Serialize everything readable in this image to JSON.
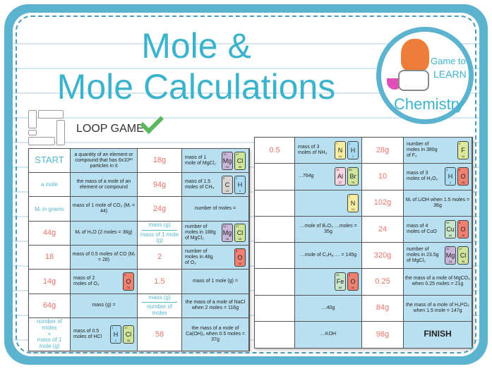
{
  "title": {
    "line1": "Mole &",
    "line2": "Mole Calculations"
  },
  "logo": {
    "line1": "Game to",
    "line2": "LEARN",
    "line3": "Chemistry"
  },
  "badge": {
    "label": "LOOP GAME"
  },
  "colors": {
    "accent": "#3cb3cc",
    "frame": "#5bb3cf",
    "answer": "#e8736a",
    "question_bg": "#b8e0f0"
  },
  "elements": {
    "H": {
      "num": "1",
      "mass": "1",
      "color": "#a9dcf2"
    },
    "C": {
      "num": "6",
      "mass": "12",
      "color": "#d9d5d2"
    },
    "N": {
      "num": "7",
      "mass": "14",
      "color": "#f7eda0"
    },
    "O": {
      "num": "8",
      "mass": "16",
      "color": "#f08070"
    },
    "F": {
      "num": "9",
      "mass": "19",
      "color": "#dbea9a"
    },
    "Mg": {
      "num": "12",
      "mass": "24",
      "color": "#c9b6d9"
    },
    "Al": {
      "num": "13",
      "mass": "27",
      "color": "#f6d4e0"
    },
    "Cl": {
      "num": "17",
      "mass": "35",
      "color": "#cfe59a"
    },
    "Fe": {
      "num": "26",
      "mass": "56",
      "color": "#c8e6c9"
    },
    "Cu": {
      "num": "29",
      "mass": "64",
      "color": "#c8e6c9"
    },
    "Br": {
      "num": "35",
      "mass": "79",
      "color": "#cfe59a"
    }
  },
  "back_card": {
    "rows": [
      {
        "a1": "0.5",
        "q1": "mass of 3 moles of NH₃",
        "q1_els": [
          "N",
          "H"
        ],
        "a2": "28g",
        "q2": "number of moles in 380g of F₂",
        "q2_els": [
          "F"
        ]
      },
      {
        "a1": "",
        "q1": "…764g",
        "q1_els": [
          "Al",
          "Br"
        ],
        "a2": "10",
        "q2": "mass of 3 moles of H₂O₂",
        "q2_els": [
          "H",
          "O"
        ]
      },
      {
        "a1": "",
        "q1": "",
        "q1_els": [
          "N"
        ],
        "a2": "102g",
        "q2": "Mᵣ of LiOH when 1.5 moles = 36g",
        "q2_els": []
      },
      {
        "a1": "",
        "q1": "…mole of B₂O₃ …moles = 35g",
        "q1_els": [],
        "a2": "24",
        "q2": "mass of 4 moles of CuO",
        "q2_els": [
          "Cu",
          "O"
        ]
      },
      {
        "a1": "",
        "q1": "…mole of C₃H₈ … = 145g",
        "q1_els": [],
        "a2": "320g",
        "q2": "number of moles in 23.5g of MgCl₂",
        "q2_els": [
          "Mg",
          "Cl"
        ]
      },
      {
        "a1": "",
        "q1": "",
        "q1_els": [
          "Fe",
          "O"
        ],
        "a2": "0.25",
        "q2": "the mass of a mole of MgCO₃ when 0.25 moles = 21g",
        "q2_els": []
      },
      {
        "a1": "",
        "q1": "…40g",
        "q1_els": [],
        "a2": "84g",
        "q2": "the mass of a mole of H₃PO₄ when 1.5 mole = 147g",
        "q2_els": []
      },
      {
        "a1": "",
        "q1": "…KOH",
        "q1_els": [],
        "a2": "98g",
        "q2": "FINISH",
        "q2_els": []
      }
    ]
  },
  "front_card": {
    "rows": [
      {
        "a1": "START",
        "q1": "a quantity of an element or compound that has 6x10²³ particles in it",
        "q1_els": [],
        "a2": "18g",
        "q2": "mass of 1 mole of MgCl₂",
        "q2_els": [
          "Mg",
          "Cl"
        ]
      },
      {
        "a1": "a mole",
        "q1": "the mass of a mole of an element or compound",
        "q1_els": [],
        "a2": "94g",
        "q2": "mass of 1.5 moles of CH₄",
        "q2_els": [
          "C",
          "H"
        ]
      },
      {
        "a1": "Mᵣ in grams",
        "q1": "mass of 1 mole of CO₂ (Mᵣ = 44)",
        "q1_els": [],
        "a2": "24g",
        "q2": "number of moles =",
        "q2_els": []
      },
      {
        "a1": "44g",
        "q1": "Mᵣ of H₂O (2 moles = 36g)",
        "q1_els": [],
        "a2": {
          "top": "mass (g)",
          "bottom": "mass of 1 mole (g)"
        },
        "q2": "number of moles in 188g of MgCl₂",
        "q2_els": [
          "Mg",
          "Cl"
        ]
      },
      {
        "a1": "18",
        "q1": "mass of 0.5 moles of CO (Mᵣ = 28)",
        "q1_els": [],
        "a2": "2",
        "q2": "number of moles in 48g of O₂",
        "q2_els": [
          "O"
        ]
      },
      {
        "a1": "14g",
        "q1": "mass of 2 moles of O₂",
        "q1_els": [
          "O"
        ],
        "a2": "1.5",
        "q2": "mass of 1 mole (g) =",
        "q2_els": []
      },
      {
        "a1": "64g",
        "q1": "mass (g) =",
        "q1_els": [],
        "a2": {
          "top": "mass (g)",
          "bottom": "number of moles"
        },
        "q2": "the mass of a mole of NaCl when 2 moles = 116g",
        "q2_els": []
      },
      {
        "a1": {
          "top": "number of moles",
          "mid": "×",
          "bottom": "mass of 1 mole (g)"
        },
        "q1": "mass of 0.5 moles of HCl",
        "q1_els": [
          "H",
          "Cl"
        ],
        "a2": "58",
        "q2": "the mass of a mole of Ca(OH)₂ when 0.5 moles = 37g",
        "q2_els": []
      }
    ]
  }
}
